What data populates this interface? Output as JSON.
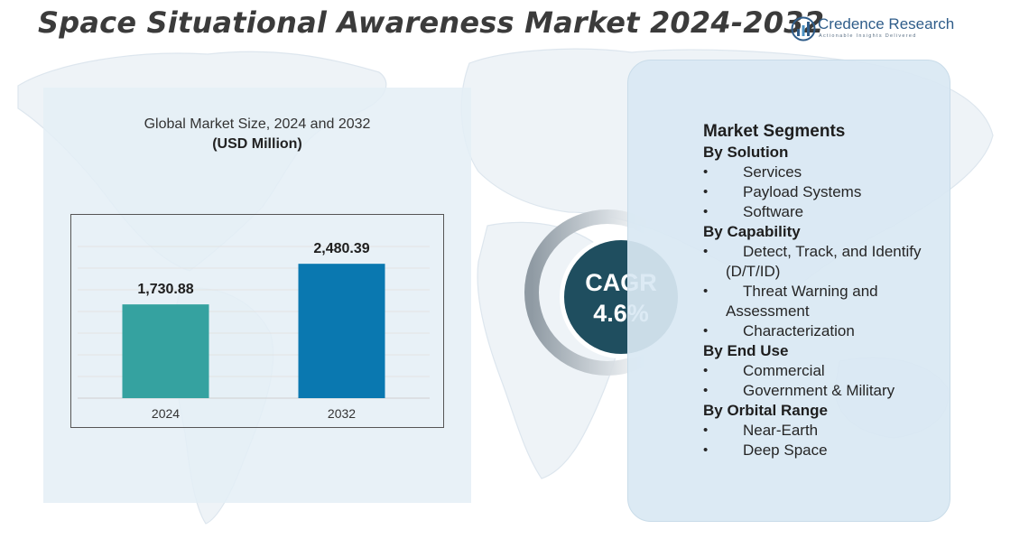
{
  "header": {
    "title": "Space Situational Awareness Market 2024-2032"
  },
  "logo": {
    "name": "Credence Research",
    "tagline": "Actionable Insights Delivered"
  },
  "chart_data": {
    "type": "bar",
    "title": "Global Market Size, 2024 and 2032",
    "unit": "(USD Million)",
    "categories": [
      "2024",
      "2032"
    ],
    "values": [
      1730.88,
      2480.39
    ],
    "value_labels": [
      "1,730.88",
      "2,480.39"
    ],
    "colors": [
      "#35a2a0",
      "#0a78b0"
    ],
    "ylim": [
      0,
      2800
    ],
    "grid": true,
    "legend": "none"
  },
  "cagr": {
    "label": "CAGR",
    "value": "4.6%"
  },
  "segments": {
    "heading": "Market Segments",
    "groups": [
      {
        "title": "By Solution",
        "items": [
          "Services",
          "Payload Systems",
          "Software"
        ]
      },
      {
        "title": "By Capability",
        "items": [
          "Detect, Track, and Identify (D/T/ID)",
          "Threat Warning and Assessment",
          "Characterization"
        ]
      },
      {
        "title": "By End Use",
        "items": [
          "Commercial",
          "Government & Military"
        ]
      },
      {
        "title": "By Orbital Range",
        "items": [
          "Near-Earth",
          "Deep Space"
        ]
      }
    ]
  },
  "colors": {
    "title": "#3b3b3b",
    "chart_panel": "#e4eef6",
    "segment_panel": "#d9e8f3",
    "cagr_circle": "#1f4e5f",
    "brand": "#2f5d8a"
  }
}
